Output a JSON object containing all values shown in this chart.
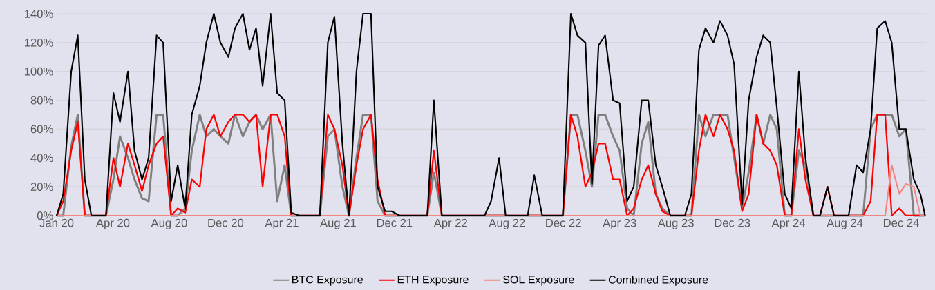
{
  "chart_data": {
    "type": "line",
    "x": [
      "2020-01-01",
      "2020-01-15",
      "2020-02-01",
      "2020-02-15",
      "2020-03-01",
      "2020-03-15",
      "2020-04-01",
      "2020-04-15",
      "2020-05-01",
      "2020-05-15",
      "2020-06-01",
      "2020-06-15",
      "2020-07-01",
      "2020-07-15",
      "2020-08-01",
      "2020-08-15",
      "2020-09-01",
      "2020-09-15",
      "2020-10-01",
      "2020-10-15",
      "2020-11-01",
      "2020-11-15",
      "2020-12-01",
      "2020-12-15",
      "2021-01-01",
      "2021-01-15",
      "2021-02-01",
      "2021-02-15",
      "2021-03-01",
      "2021-03-15",
      "2021-04-01",
      "2021-04-15",
      "2021-05-01",
      "2021-05-15",
      "2021-06-01",
      "2021-06-15",
      "2021-07-01",
      "2021-07-15",
      "2021-08-01",
      "2021-08-15",
      "2021-09-01",
      "2021-09-15",
      "2021-10-01",
      "2021-10-15",
      "2021-11-01",
      "2021-11-15",
      "2021-12-01",
      "2021-12-15",
      "2022-01-01",
      "2022-01-15",
      "2022-02-01",
      "2022-02-15",
      "2022-03-01",
      "2022-03-15",
      "2022-04-01",
      "2022-04-15",
      "2022-05-01",
      "2022-05-15",
      "2022-06-01",
      "2022-06-15",
      "2022-07-01",
      "2022-07-15",
      "2022-08-01",
      "2022-08-15",
      "2022-09-01",
      "2022-09-15",
      "2022-10-01",
      "2022-10-15",
      "2022-11-01",
      "2022-11-15",
      "2022-12-01",
      "2022-12-15",
      "2023-01-01",
      "2023-01-15",
      "2023-02-01",
      "2023-02-15",
      "2023-03-01",
      "2023-03-15",
      "2023-04-01",
      "2023-04-15",
      "2023-05-01",
      "2023-05-15",
      "2023-06-01",
      "2023-06-15",
      "2023-07-01",
      "2023-07-15",
      "2023-08-01",
      "2023-08-15",
      "2023-09-01",
      "2023-09-15",
      "2023-10-01",
      "2023-10-15",
      "2023-11-01",
      "2023-11-15",
      "2023-12-01",
      "2023-12-15",
      "2024-01-01",
      "2024-01-15",
      "2024-02-01",
      "2024-02-15",
      "2024-03-01",
      "2024-03-15",
      "2024-04-01",
      "2024-04-15",
      "2024-05-01",
      "2024-05-15",
      "2024-06-01",
      "2024-06-15",
      "2024-07-01",
      "2024-07-15",
      "2024-08-01",
      "2024-08-15",
      "2024-09-01",
      "2024-09-15",
      "2024-10-01",
      "2024-10-15",
      "2024-11-01",
      "2024-11-15",
      "2024-12-01",
      "2024-12-15",
      "2025-01-01",
      "2025-01-15",
      "2025-01-25"
    ],
    "series": [
      {
        "name": "BTC Exposure",
        "color": "#808080",
        "values": [
          0,
          0,
          48,
          70,
          0,
          0,
          0,
          0,
          25,
          55,
          40,
          25,
          12,
          10,
          70,
          70,
          0,
          0,
          5,
          45,
          70,
          55,
          60,
          55,
          50,
          70,
          55,
          65,
          70,
          60,
          70,
          10,
          35,
          0,
          0,
          0,
          0,
          0,
          55,
          60,
          20,
          0,
          40,
          70,
          70,
          10,
          0,
          0,
          0,
          0,
          0,
          0,
          0,
          30,
          0,
          0,
          0,
          0,
          0,
          0,
          0,
          0,
          0,
          0,
          0,
          0,
          0,
          0,
          0,
          0,
          0,
          0,
          70,
          70,
          45,
          20,
          70,
          70,
          55,
          45,
          5,
          0,
          50,
          65,
          15,
          5,
          0,
          0,
          0,
          0,
          70,
          55,
          70,
          70,
          70,
          40,
          5,
          30,
          70,
          50,
          70,
          60,
          0,
          0,
          45,
          35,
          0,
          0,
          0,
          0,
          0,
          0,
          0,
          0,
          60,
          70,
          70,
          70,
          55,
          60,
          0,
          0,
          0
        ]
      },
      {
        "name": "ETH Exposure",
        "color": "#ff0000",
        "values": [
          0,
          10,
          45,
          65,
          0,
          0,
          0,
          0,
          40,
          20,
          50,
          35,
          17,
          35,
          50,
          55,
          0,
          5,
          2,
          25,
          20,
          60,
          70,
          55,
          65,
          70,
          70,
          65,
          70,
          20,
          70,
          70,
          55,
          0,
          0,
          0,
          0,
          0,
          70,
          60,
          35,
          0,
          35,
          60,
          70,
          25,
          0,
          0,
          0,
          0,
          0,
          0,
          0,
          45,
          0,
          0,
          0,
          0,
          0,
          0,
          0,
          0,
          0,
          0,
          0,
          0,
          0,
          0,
          0,
          0,
          0,
          0,
          70,
          55,
          20,
          30,
          50,
          50,
          25,
          25,
          0,
          5,
          25,
          35,
          15,
          3,
          0,
          0,
          0,
          0,
          45,
          70,
          55,
          70,
          60,
          45,
          3,
          15,
          70,
          50,
          45,
          35,
          0,
          0,
          60,
          25,
          0,
          0,
          20,
          0,
          0,
          0,
          0,
          0,
          10,
          70,
          70,
          0,
          5,
          0,
          0,
          0,
          0
        ]
      },
      {
        "name": "SOL Exposure",
        "color": "#f4867f",
        "values": [
          0,
          0,
          0,
          0,
          0,
          0,
          0,
          0,
          0,
          0,
          0,
          0,
          0,
          0,
          0,
          0,
          0,
          0,
          0,
          0,
          0,
          0,
          0,
          0,
          0,
          0,
          0,
          0,
          0,
          0,
          0,
          0,
          0,
          0,
          0,
          0,
          0,
          0,
          0,
          0,
          0,
          0,
          0,
          0,
          0,
          0,
          0,
          0,
          0,
          0,
          0,
          0,
          0,
          0,
          0,
          0,
          0,
          0,
          0,
          0,
          0,
          0,
          0,
          0,
          0,
          0,
          0,
          0,
          0,
          0,
          0,
          0,
          0,
          0,
          0,
          0,
          0,
          0,
          0,
          0,
          0,
          0,
          0,
          0,
          0,
          0,
          0,
          0,
          0,
          0,
          0,
          0,
          0,
          0,
          0,
          0,
          0,
          0,
          0,
          0,
          0,
          0,
          0,
          0,
          0,
          0,
          0,
          0,
          0,
          0,
          0,
          0,
          0,
          0,
          0,
          0,
          0,
          35,
          15,
          22,
          20,
          0,
          0
        ]
      },
      {
        "name": "Combined Exposure",
        "color": "#000000",
        "values": [
          0,
          15,
          100,
          125,
          25,
          0,
          0,
          0,
          85,
          65,
          100,
          45,
          25,
          40,
          125,
          120,
          10,
          35,
          5,
          70,
          90,
          120,
          140,
          120,
          110,
          130,
          140,
          115,
          130,
          90,
          140,
          85,
          80,
          2,
          0,
          0,
          0,
          0,
          120,
          138,
          50,
          0,
          100,
          140,
          140,
          20,
          3,
          3,
          0,
          0,
          0,
          0,
          0,
          80,
          0,
          0,
          0,
          0,
          0,
          0,
          0,
          10,
          40,
          0,
          0,
          0,
          0,
          28,
          0,
          0,
          0,
          0,
          140,
          125,
          120,
          22,
          118,
          125,
          80,
          78,
          10,
          20,
          80,
          80,
          35,
          20,
          0,
          0,
          0,
          15,
          115,
          130,
          120,
          135,
          125,
          105,
          8,
          80,
          110,
          125,
          120,
          75,
          15,
          5,
          100,
          40,
          0,
          0,
          20,
          0,
          0,
          0,
          35,
          30,
          60,
          130,
          135,
          120,
          60,
          60,
          25,
          15,
          0
        ]
      }
    ],
    "xlim": [
      "2020-01-01",
      "2025-01-27"
    ],
    "xticks": [
      {
        "value": "2020-01-01",
        "label": "Jan 20"
      },
      {
        "value": "2020-04-30",
        "label": "Apr 20"
      },
      {
        "value": "2020-08-28",
        "label": "Aug 20"
      },
      {
        "value": "2020-12-26",
        "label": "Dec 20"
      },
      {
        "value": "2021-04-25",
        "label": "Apr 21"
      },
      {
        "value": "2021-08-23",
        "label": "Aug 21"
      },
      {
        "value": "2021-12-21",
        "label": "Dec 21"
      },
      {
        "value": "2022-04-20",
        "label": "Apr 22"
      },
      {
        "value": "2022-08-18",
        "label": "Aug 22"
      },
      {
        "value": "2022-12-16",
        "label": "Dec 22"
      },
      {
        "value": "2023-04-15",
        "label": "Apr 23"
      },
      {
        "value": "2023-08-13",
        "label": "Aug 23"
      },
      {
        "value": "2023-12-11",
        "label": "Dec 23"
      },
      {
        "value": "2024-04-09",
        "label": "Apr 24"
      },
      {
        "value": "2024-08-07",
        "label": "Aug 24"
      },
      {
        "value": "2024-12-05",
        "label": "Dec 24"
      }
    ],
    "ylim": [
      0,
      140
    ],
    "yticks": [
      {
        "value": 0,
        "label": "0%"
      },
      {
        "value": 20,
        "label": "20%"
      },
      {
        "value": 40,
        "label": "40%"
      },
      {
        "value": 60,
        "label": "60%"
      },
      {
        "value": 80,
        "label": "80%"
      },
      {
        "value": 100,
        "label": "100%"
      },
      {
        "value": 120,
        "label": "120%"
      },
      {
        "value": 140,
        "label": "140%"
      }
    ],
    "grid": "y",
    "legend": "bottom",
    "marker": "none",
    "line_style": "solid"
  }
}
